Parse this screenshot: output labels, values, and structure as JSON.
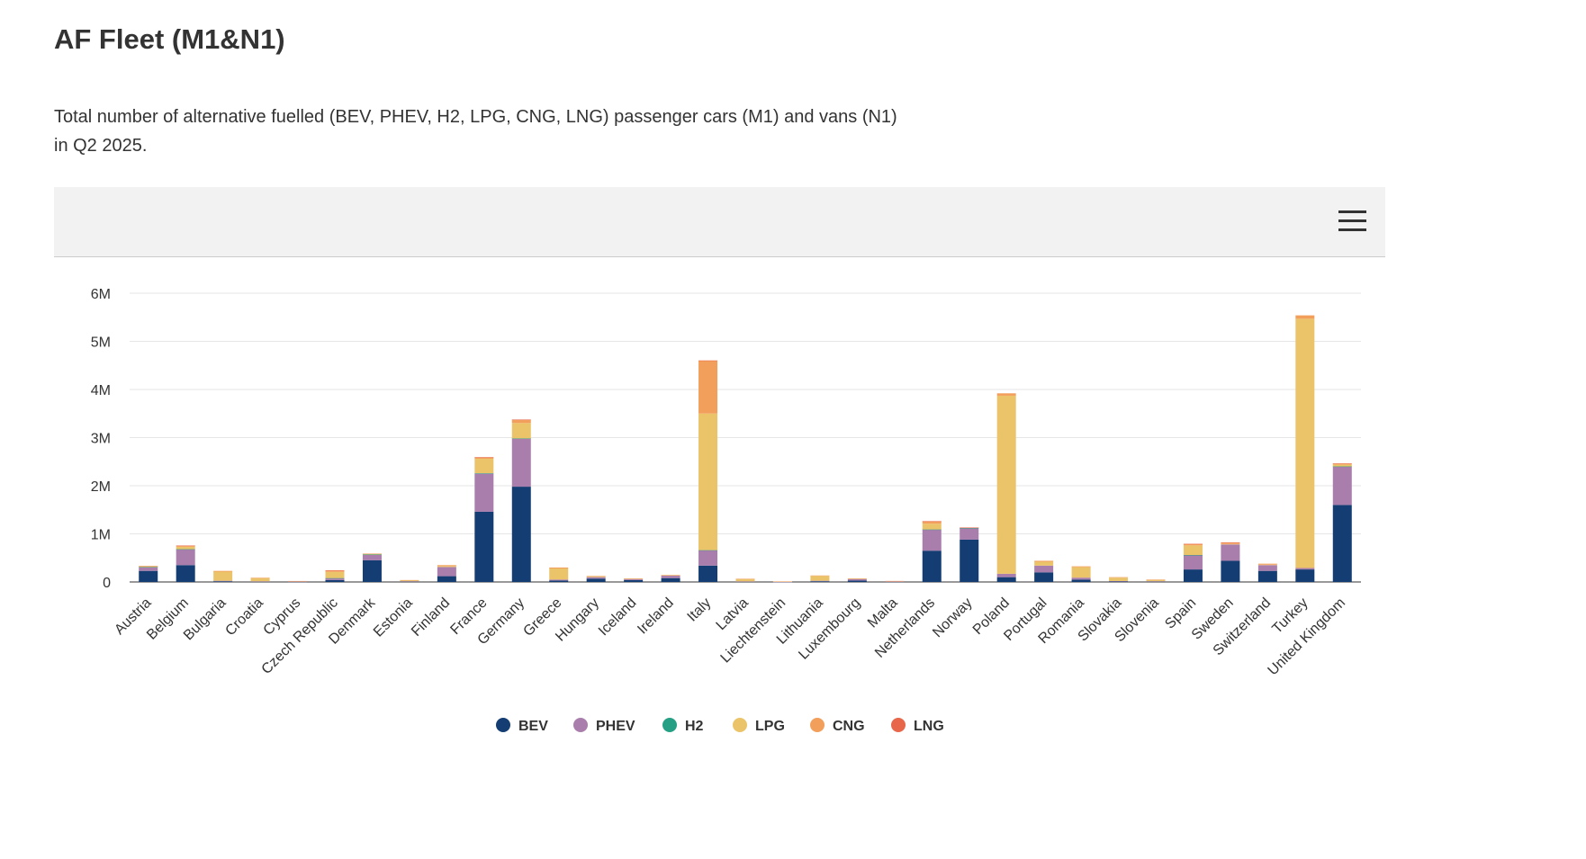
{
  "header": {
    "title": "AF Fleet (M1&N1)",
    "description": "Total number of alternative fuelled (BEV, PHEV, H2, LPG, CNG, LNG) passenger cars (M1) and vans (N1) in Q2 2025."
  },
  "toolbar": {
    "menu_icon": "hamburger-menu-icon"
  },
  "chart_data": {
    "type": "bar",
    "stacked": true,
    "title": "",
    "xlabel": "",
    "ylabel": "",
    "ylim": [
      0,
      6000000
    ],
    "yticks": [
      0,
      1000000,
      2000000,
      3000000,
      4000000,
      5000000,
      6000000
    ],
    "ytick_labels": [
      "0",
      "1M",
      "2M",
      "3M",
      "4M",
      "5M",
      "6M"
    ],
    "grid": true,
    "legend_position": "bottom-center",
    "categories": [
      "Austria",
      "Belgium",
      "Bulgaria",
      "Croatia",
      "Cyprus",
      "Czech Republic",
      "Denmark",
      "Estonia",
      "Finland",
      "France",
      "Germany",
      "Greece",
      "Hungary",
      "Iceland",
      "Ireland",
      "Italy",
      "Latvia",
      "Liechtenstein",
      "Lithuania",
      "Luxembourg",
      "Malta",
      "Netherlands",
      "Norway",
      "Poland",
      "Portugal",
      "Romania",
      "Slovakia",
      "Slovenia",
      "Spain",
      "Sweden",
      "Switzerland",
      "Turkey",
      "United Kingdom"
    ],
    "series": [
      {
        "name": "BEV",
        "color": "#143d73",
        "values": [
          230000,
          350000,
          15000,
          8000,
          5000,
          40000,
          450000,
          10000,
          120000,
          1460000,
          1980000,
          30000,
          70000,
          40000,
          80000,
          340000,
          8000,
          2000,
          15000,
          30000,
          5000,
          650000,
          880000,
          100000,
          200000,
          50000,
          10000,
          10000,
          260000,
          440000,
          230000,
          260000,
          1600000
        ]
      },
      {
        "name": "PHEV",
        "color": "#a97dac",
        "values": [
          80000,
          330000,
          10000,
          5000,
          3000,
          40000,
          120000,
          5000,
          190000,
          790000,
          1000000,
          20000,
          30000,
          20000,
          50000,
          320000,
          4000,
          3000,
          10000,
          30000,
          4000,
          440000,
          240000,
          70000,
          140000,
          40000,
          10000,
          5000,
          300000,
          340000,
          120000,
          30000,
          800000
        ]
      },
      {
        "name": "H2",
        "color": "#26a085",
        "values": [
          500,
          500,
          0,
          0,
          0,
          500,
          500,
          0,
          0,
          10000,
          3000,
          0,
          0,
          0,
          0,
          500,
          0,
          0,
          0,
          0,
          0,
          1000,
          500,
          0,
          0,
          0,
          0,
          0,
          500,
          0,
          0,
          0,
          500
        ]
      },
      {
        "name": "LPG",
        "color": "#ebc469",
        "values": [
          10000,
          50000,
          190000,
          70000,
          10000,
          130000,
          10000,
          20000,
          20000,
          300000,
          320000,
          230000,
          20000,
          10000,
          10000,
          2840000,
          50000,
          5000,
          100000,
          10000,
          10000,
          120000,
          0,
          3700000,
          80000,
          220000,
          70000,
          30000,
          200000,
          10000,
          10000,
          5180000,
          40000
        ]
      },
      {
        "name": "CNG",
        "color": "#f39f5c",
        "values": [
          15000,
          25000,
          15000,
          5000,
          2000,
          30000,
          10000,
          5000,
          20000,
          30000,
          70000,
          20000,
          5000,
          5000,
          5000,
          1100000,
          5000,
          1000,
          10000,
          5000,
          2000,
          50000,
          10000,
          50000,
          20000,
          15000,
          10000,
          5000,
          30000,
          30000,
          20000,
          70000,
          20000
        ]
      },
      {
        "name": "LNG",
        "color": "#e8664a",
        "values": [
          0,
          1000,
          0,
          0,
          0,
          1000,
          0,
          0,
          0,
          3000,
          2000,
          0,
          0,
          0,
          0,
          2000,
          0,
          0,
          0,
          0,
          0,
          3000,
          1000,
          0,
          0,
          0,
          0,
          0,
          1000,
          1000,
          0,
          0,
          2000
        ]
      }
    ]
  }
}
